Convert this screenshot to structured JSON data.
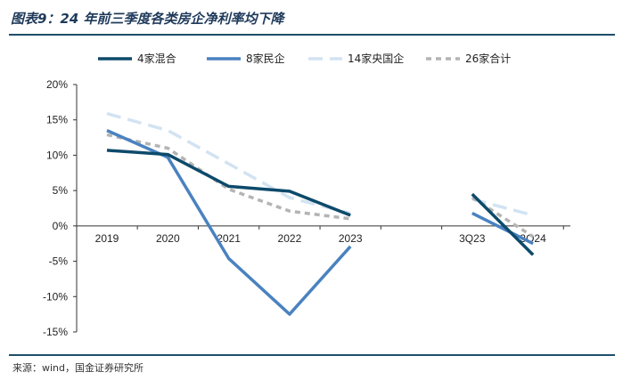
{
  "figure": {
    "title": "图表9：24 年前三季度各类房企净利率均下降",
    "source": "来源：wind，国金证券研究所"
  },
  "chart_data": {
    "type": "line",
    "categories": [
      "2019",
      "2020",
      "2021",
      "2022",
      "2023",
      "",
      "3Q23",
      "3Q24"
    ],
    "ylim": [
      -0.15,
      0.2
    ],
    "yticks": [
      0.2,
      0.15,
      0.1,
      0.05,
      0.0,
      -0.05,
      -0.1,
      -0.15
    ],
    "ytick_labels": [
      "20%",
      "15%",
      "10%",
      "5%",
      "0%",
      "-5%",
      "-10%",
      "-15%"
    ],
    "legend_position": "top",
    "grid": false,
    "series": [
      {
        "name": "4家混合",
        "color": "#0d4a6b",
        "dash": "solid",
        "values": [
          0.107,
          0.101,
          0.056,
          0.049,
          0.015,
          null,
          0.045,
          -0.041
        ]
      },
      {
        "name": "8家民企",
        "color": "#4a82c0",
        "dash": "solid",
        "values": [
          0.135,
          0.097,
          -0.046,
          -0.125,
          -0.029,
          null,
          0.018,
          -0.025
        ]
      },
      {
        "name": "14家央国企",
        "color": "#d2e3f2",
        "dash": "long",
        "values": [
          0.159,
          0.135,
          0.088,
          0.04,
          0.018,
          null,
          0.038,
          0.015
        ]
      },
      {
        "name": "26家合计",
        "color": "#b4b4b4",
        "dash": "short",
        "values": [
          0.129,
          0.11,
          0.052,
          0.021,
          0.01,
          null,
          0.04,
          -0.015
        ]
      }
    ]
  }
}
